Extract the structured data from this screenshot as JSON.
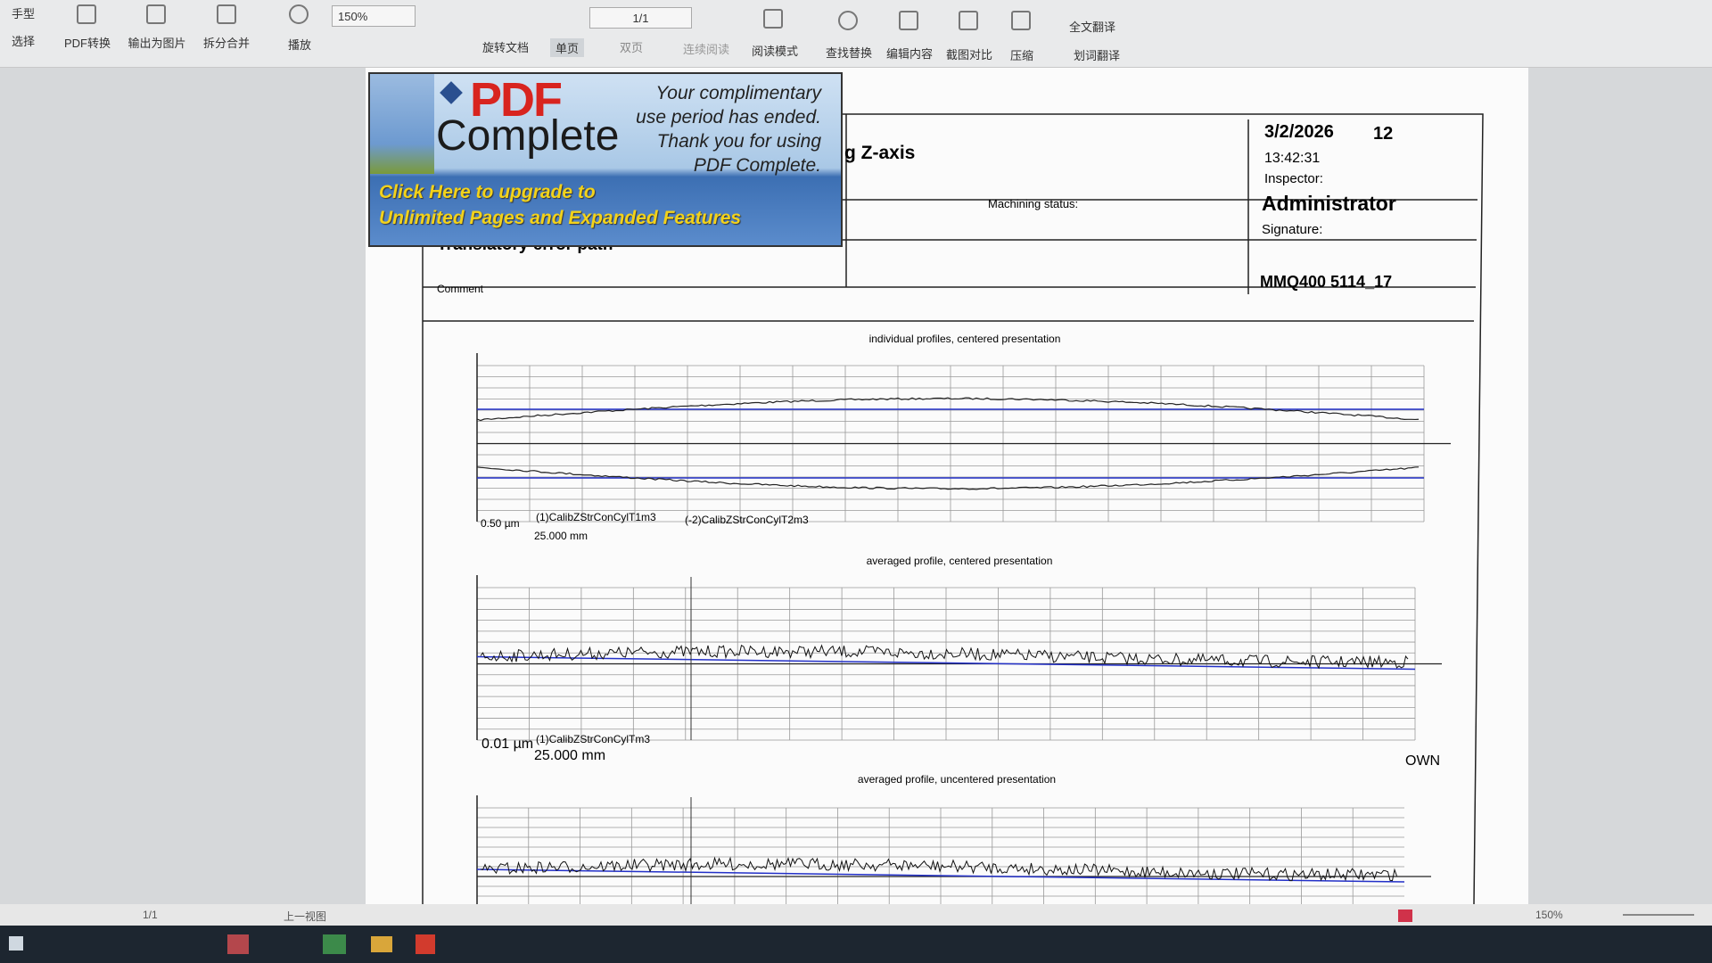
{
  "toolbar": {
    "tools": [
      "手型",
      "选择",
      "PDF转换",
      "输出为图片",
      "拆分合并",
      "播放",
      "旋转文档",
      "单页",
      "双页",
      "连续阅读",
      "阅读模式",
      "查找替换",
      "编辑内容",
      "截图对比",
      "压缩",
      "全文翻译",
      "划词翻译"
    ],
    "zoom": "150%",
    "page": "1/1"
  },
  "ad": {
    "brand_top": "PDF",
    "brand_bottom": "Complete",
    "message": [
      "Your complimentary",
      "use period has ended.",
      "Thank you for using",
      "PDF Complete."
    ],
    "upgrade": [
      "Click Here to upgrade to",
      "Unlimited Pages and Expanded Features"
    ]
  },
  "report": {
    "title": "g Z-axis",
    "date": "3/2/2026",
    "number": "12",
    "time": "13:42:31",
    "inspector_label": "Inspector:",
    "inspector": "Administrator",
    "signature_label": "Signature:",
    "machining_status_label": "Machining status:",
    "subtitle": "Translatory error path",
    "comment_label": "Comment",
    "machine_id": "MMQ400 5114_17",
    "plots": [
      {
        "title": "individual profiles, centered presentation",
        "scale_y": "0.50 µm",
        "scale_x": "25.000 mm",
        "legend": [
          "(1)CalibZStrConCylT1m3",
          "(-2)CalibZStrConCylT2m3"
        ]
      },
      {
        "title": "averaged profile, centered presentation",
        "scale_y": "0.01 µm",
        "scale_x": "25.000 mm",
        "legend": [
          "(1)CalibZStrConCylTm3"
        ],
        "note": "OWN"
      },
      {
        "title": "averaged profile, uncentered presentation"
      }
    ]
  },
  "statusbar": {
    "page": "1/1",
    "prev_view": "上一视图",
    "zoom": "150%"
  }
}
